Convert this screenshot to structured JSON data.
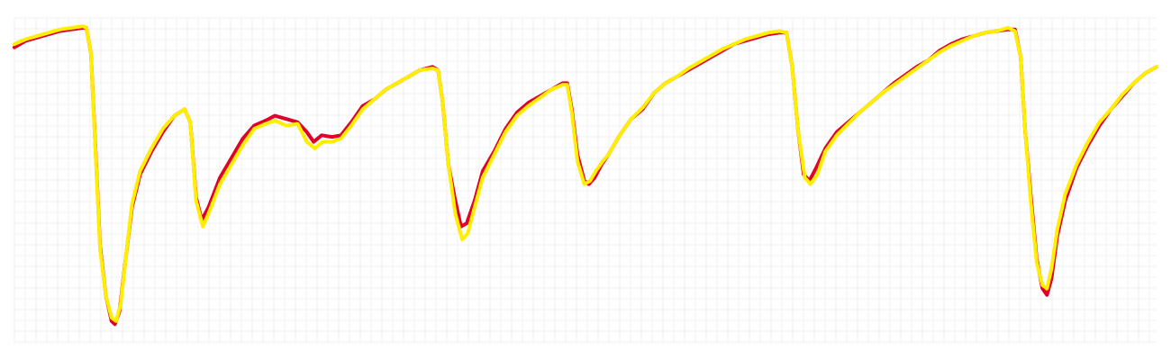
{
  "chart_data": {
    "type": "line",
    "title": "",
    "xlabel": "",
    "ylabel": "",
    "grid": true,
    "legend": "none",
    "xlim": [
      0,
      100
    ],
    "ylim": [
      0,
      100
    ],
    "colors": {
      "background": "#ffffff",
      "grid": "#f1f1f1"
    },
    "series": [
      {
        "color": "#e0002a",
        "points": [
          [
            0,
            91
          ],
          [
            1,
            93
          ],
          [
            2,
            94
          ],
          [
            3,
            95
          ],
          [
            4,
            96
          ],
          [
            5,
            96.5
          ],
          [
            6,
            97
          ],
          [
            6.3,
            97
          ],
          [
            6.7,
            89
          ],
          [
            7.1,
            60
          ],
          [
            7.5,
            30
          ],
          [
            8,
            15
          ],
          [
            8.5,
            7
          ],
          [
            8.8,
            6
          ],
          [
            9.2,
            10
          ],
          [
            9.7,
            25
          ],
          [
            10.3,
            42
          ],
          [
            11,
            52
          ],
          [
            12,
            59
          ],
          [
            13,
            65
          ],
          [
            14,
            70
          ],
          [
            14.9,
            72
          ],
          [
            15.4,
            68
          ],
          [
            15.9,
            45
          ],
          [
            16.4,
            38
          ],
          [
            17,
            42
          ],
          [
            18,
            51
          ],
          [
            19,
            57
          ],
          [
            20,
            63
          ],
          [
            21,
            67
          ],
          [
            22,
            68.5
          ],
          [
            22.8,
            70
          ],
          [
            23.8,
            69
          ],
          [
            24.8,
            68
          ],
          [
            25.6,
            65
          ],
          [
            26.2,
            62
          ],
          [
            26.9,
            64
          ],
          [
            27.8,
            63.5
          ],
          [
            28.6,
            64
          ],
          [
            29.5,
            68
          ],
          [
            30.5,
            73
          ],
          [
            31.5,
            75
          ],
          [
            32.5,
            78
          ],
          [
            33.5,
            80
          ],
          [
            34.5,
            82
          ],
          [
            35.5,
            84
          ],
          [
            36.6,
            85
          ],
          [
            37.1,
            84
          ],
          [
            37.5,
            74
          ],
          [
            38,
            55
          ],
          [
            38.6,
            44
          ],
          [
            39.1,
            36
          ],
          [
            39.6,
            37
          ],
          [
            40.3,
            44
          ],
          [
            41,
            53
          ],
          [
            42,
            59
          ],
          [
            43,
            66
          ],
          [
            44,
            71
          ],
          [
            45,
            74
          ],
          [
            46,
            76
          ],
          [
            47,
            78
          ],
          [
            48,
            80
          ],
          [
            48.4,
            80
          ],
          [
            48.8,
            72
          ],
          [
            49.3,
            58
          ],
          [
            49.9,
            50
          ],
          [
            50.3,
            49
          ],
          [
            50.8,
            51
          ],
          [
            51.4,
            55
          ],
          [
            52,
            58
          ],
          [
            53,
            64
          ],
          [
            54,
            69
          ],
          [
            55,
            72
          ],
          [
            56,
            77
          ],
          [
            57,
            80
          ],
          [
            58,
            82
          ],
          [
            59,
            84
          ],
          [
            60,
            86
          ],
          [
            61,
            88
          ],
          [
            62,
            90
          ],
          [
            63,
            92
          ],
          [
            64,
            93
          ],
          [
            65,
            94
          ],
          [
            66,
            95
          ],
          [
            67,
            95.5
          ],
          [
            67.6,
            95.5
          ],
          [
            68.1,
            85
          ],
          [
            68.6,
            66
          ],
          [
            69.1,
            52
          ],
          [
            69.6,
            50
          ],
          [
            70.2,
            54
          ],
          [
            71,
            60
          ],
          [
            72,
            65
          ],
          [
            73,
            68
          ],
          [
            74,
            71
          ],
          [
            75,
            74
          ],
          [
            76,
            77
          ],
          [
            77,
            80
          ],
          [
            78,
            82.5
          ],
          [
            79,
            85
          ],
          [
            80,
            87
          ],
          [
            81,
            90
          ],
          [
            82,
            92
          ],
          [
            83,
            93.5
          ],
          [
            84,
            94.5
          ],
          [
            85,
            95.5
          ],
          [
            86,
            96
          ],
          [
            87,
            96.5
          ],
          [
            87.6,
            96.5
          ],
          [
            88.1,
            88
          ],
          [
            88.5,
            65
          ],
          [
            89,
            45
          ],
          [
            89.5,
            26
          ],
          [
            90,
            17
          ],
          [
            90.4,
            15
          ],
          [
            90.8,
            20
          ],
          [
            91.3,
            33
          ],
          [
            92,
            44
          ],
          [
            93,
            54
          ],
          [
            94,
            61
          ],
          [
            95,
            67
          ],
          [
            96,
            72
          ],
          [
            97,
            76
          ],
          [
            98,
            80
          ],
          [
            99,
            83
          ],
          [
            100,
            85
          ]
        ]
      },
      {
        "color": "#ffee00",
        "points": [
          [
            0,
            92
          ],
          [
            1,
            93.5
          ],
          [
            2,
            94.5
          ],
          [
            3,
            95.5
          ],
          [
            4,
            96.5
          ],
          [
            5,
            97
          ],
          [
            6,
            97.5
          ],
          [
            6.3,
            97
          ],
          [
            6.7,
            89
          ],
          [
            7.1,
            59
          ],
          [
            7.5,
            29
          ],
          [
            8,
            15
          ],
          [
            8.5,
            8
          ],
          [
            8.9,
            7
          ],
          [
            9.3,
            12
          ],
          [
            9.8,
            28
          ],
          [
            10.3,
            43
          ],
          [
            11,
            53
          ],
          [
            12,
            60
          ],
          [
            13,
            66
          ],
          [
            14,
            70
          ],
          [
            14.9,
            72
          ],
          [
            15.4,
            68
          ],
          [
            15.9,
            44
          ],
          [
            16.5,
            36
          ],
          [
            17,
            40
          ],
          [
            18,
            49
          ],
          [
            19,
            55
          ],
          [
            20,
            61
          ],
          [
            21,
            66
          ],
          [
            22,
            67.5
          ],
          [
            22.8,
            68.5
          ],
          [
            23.8,
            67
          ],
          [
            24.8,
            67.5
          ],
          [
            25.6,
            62
          ],
          [
            26.3,
            60
          ],
          [
            27,
            62
          ],
          [
            27.8,
            62
          ],
          [
            28.6,
            63
          ],
          [
            29.5,
            67
          ],
          [
            30.5,
            72
          ],
          [
            31.5,
            75
          ],
          [
            32.5,
            78
          ],
          [
            33.5,
            80
          ],
          [
            34.5,
            82
          ],
          [
            35.5,
            84
          ],
          [
            36.6,
            84.5
          ],
          [
            37.1,
            84
          ],
          [
            37.5,
            74
          ],
          [
            38,
            55
          ],
          [
            38.6,
            40
          ],
          [
            39.2,
            32
          ],
          [
            39.7,
            34
          ],
          [
            40.3,
            42
          ],
          [
            41,
            51
          ],
          [
            42,
            58
          ],
          [
            43,
            65
          ],
          [
            44,
            70
          ],
          [
            45,
            73
          ],
          [
            46,
            75.5
          ],
          [
            47,
            78
          ],
          [
            48,
            79.5
          ],
          [
            48.4,
            79.5
          ],
          [
            48.8,
            71
          ],
          [
            49.3,
            56
          ],
          [
            49.9,
            49
          ],
          [
            50.4,
            50
          ],
          [
            50.9,
            53
          ],
          [
            51.5,
            56
          ],
          [
            52,
            58
          ],
          [
            53,
            64
          ],
          [
            54,
            69
          ],
          [
            55,
            72.5
          ],
          [
            56,
            77
          ],
          [
            57,
            80
          ],
          [
            58,
            82
          ],
          [
            59,
            84.5
          ],
          [
            60,
            86.5
          ],
          [
            61,
            88.5
          ],
          [
            62,
            90.5
          ],
          [
            63,
            92
          ],
          [
            64,
            93.5
          ],
          [
            65,
            94.5
          ],
          [
            66,
            95.5
          ],
          [
            67,
            96
          ],
          [
            67.6,
            95.5
          ],
          [
            68.1,
            85
          ],
          [
            68.6,
            66
          ],
          [
            69.2,
            51
          ],
          [
            69.7,
            49
          ],
          [
            70.3,
            52
          ],
          [
            71,
            59
          ],
          [
            72,
            64
          ],
          [
            73,
            67.5
          ],
          [
            74,
            71
          ],
          [
            75,
            74
          ],
          [
            76,
            77
          ],
          [
            77,
            79.5
          ],
          [
            78,
            82
          ],
          [
            79,
            84.5
          ],
          [
            80,
            87
          ],
          [
            81,
            89.5
          ],
          [
            82,
            91.5
          ],
          [
            83,
            93
          ],
          [
            84,
            94.5
          ],
          [
            85,
            95.5
          ],
          [
            86,
            96
          ],
          [
            87,
            97
          ],
          [
            87.6,
            96
          ],
          [
            88.1,
            88
          ],
          [
            88.5,
            65
          ],
          [
            89,
            43
          ],
          [
            89.5,
            25
          ],
          [
            90,
            18
          ],
          [
            90.4,
            17
          ],
          [
            90.8,
            23
          ],
          [
            91.3,
            35
          ],
          [
            92,
            46
          ],
          [
            93,
            55
          ],
          [
            94,
            62
          ],
          [
            95,
            68
          ],
          [
            96,
            72
          ],
          [
            97,
            76.5
          ],
          [
            98,
            80
          ],
          [
            99,
            83
          ],
          [
            100,
            85
          ]
        ]
      }
    ]
  }
}
